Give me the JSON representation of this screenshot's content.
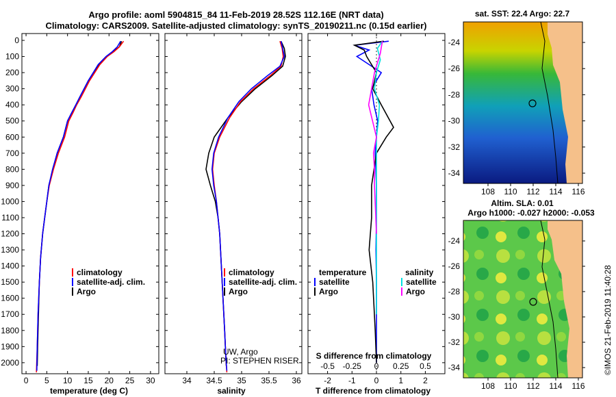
{
  "header": {
    "line1": "Argo profile: aoml 5904815_84 11-Feb-2019 28.52S 112.16E (NRT data)",
    "line2": "Climatology: CARS2009. Satellite-adjusted climatology: synTS_20190211.nc (0.15d earlier)"
  },
  "colors": {
    "argo": "#000000",
    "climatology": "#ff0000",
    "satellite": "#0000ff",
    "salinity_sat": "#00e0e0",
    "salinity_argo": "#ff00ff",
    "land": "#f5c08a"
  },
  "depth_axis": {
    "ticks": [
      0,
      100,
      200,
      300,
      400,
      500,
      600,
      700,
      800,
      900,
      1000,
      1100,
      1200,
      1300,
      1400,
      1500,
      1600,
      1700,
      1800,
      1900,
      2000
    ],
    "range": [
      0,
      2060
    ]
  },
  "legend": {
    "climatology": "climatology",
    "satellite": "satellite-adj. clim.",
    "argo": "Argo"
  },
  "diff_legend": {
    "temperature": "temperature",
    "salinity": "salinity",
    "t_satellite": "satellite",
    "t_argo": "Argo",
    "s_satellite": "satellite",
    "s_argo": "Argo"
  },
  "credits": {
    "line1": "UW, Argo",
    "line2": "PI: STEPHEN RISER"
  },
  "chart_data": [
    {
      "type": "line",
      "panel": "temperature",
      "xlabel": "temperature (deg C)",
      "xlim": [
        -1,
        32
      ],
      "xticks": [
        0,
        5,
        10,
        15,
        20,
        25,
        30
      ],
      "ylim": [
        0,
        2060
      ],
      "y_inverted": true,
      "series": [
        {
          "name": "Argo",
          "color": "#000000",
          "x": [
            23.0,
            22.5,
            21.0,
            19.5,
            17.5,
            15.0,
            13.0,
            12.0,
            11.0,
            10.0,
            9.0,
            7.5,
            6.5,
            5.5,
            5.0,
            4.5,
            4.0,
            3.5,
            3.2,
            3.0,
            2.8,
            2.7
          ],
          "y": [
            5,
            40,
            70,
            100,
            150,
            250,
            350,
            400,
            450,
            500,
            600,
            700,
            800,
            900,
            1000,
            1100,
            1200,
            1350,
            1500,
            1700,
            1900,
            2020
          ]
        },
        {
          "name": "climatology",
          "color": "#ff0000",
          "x": [
            23.5,
            22.5,
            21.2,
            19.6,
            17.8,
            15.3,
            13.3,
            12.2,
            11.3,
            10.3,
            9.3,
            7.8,
            6.6,
            5.6,
            5.0,
            4.5,
            4.0,
            3.5,
            3.2,
            2.9,
            2.7,
            2.5
          ],
          "y": [
            5,
            40,
            70,
            100,
            150,
            250,
            350,
            400,
            450,
            500,
            600,
            700,
            800,
            900,
            1000,
            1100,
            1200,
            1350,
            1500,
            1700,
            1900,
            2060
          ]
        },
        {
          "name": "satellite-adj. clim.",
          "color": "#0000ff",
          "x": [
            22.8,
            22.0,
            20.8,
            19.3,
            17.4,
            15.0,
            13.0,
            12.0,
            11.0,
            10.0,
            9.0,
            7.5,
            6.4,
            5.5,
            5.0,
            4.5,
            4.0,
            3.5,
            3.2,
            2.9,
            2.7,
            2.6
          ],
          "y": [
            5,
            40,
            70,
            100,
            150,
            250,
            350,
            400,
            450,
            500,
            600,
            700,
            800,
            900,
            1000,
            1100,
            1200,
            1350,
            1500,
            1700,
            1900,
            2050
          ]
        }
      ]
    },
    {
      "type": "line",
      "panel": "salinity",
      "xlabel": "salinity",
      "xlim": [
        33.6,
        36.1
      ],
      "xticks": [
        34,
        34.5,
        35,
        35.5,
        36
      ],
      "ylim": [
        0,
        2060
      ],
      "y_inverted": true,
      "series": [
        {
          "name": "Argo",
          "color": "#000000",
          "x": [
            35.72,
            35.78,
            35.8,
            35.75,
            35.55,
            35.25,
            35.0,
            34.75,
            34.5,
            34.4,
            34.35,
            34.43,
            34.52,
            34.57,
            34.6,
            34.63,
            34.66,
            34.69,
            34.71,
            34.72
          ],
          "y": [
            5,
            50,
            100,
            160,
            220,
            300,
            380,
            480,
            600,
            700,
            800,
            900,
            1000,
            1100,
            1200,
            1400,
            1600,
            1800,
            1950,
            2020
          ]
        },
        {
          "name": "climatology",
          "color": "#ff0000",
          "x": [
            35.7,
            35.74,
            35.76,
            35.72,
            35.52,
            35.22,
            34.98,
            34.78,
            34.6,
            34.5,
            34.47,
            34.5,
            34.54,
            34.57,
            34.6,
            34.63,
            34.66,
            34.69,
            34.71,
            34.73
          ],
          "y": [
            5,
            50,
            100,
            160,
            220,
            300,
            380,
            480,
            600,
            700,
            800,
            900,
            1000,
            1100,
            1200,
            1400,
            1600,
            1800,
            1950,
            2060
          ]
        },
        {
          "name": "satellite-adj. clim.",
          "color": "#0000ff",
          "x": [
            35.72,
            35.75,
            35.78,
            35.7,
            35.47,
            35.18,
            34.95,
            34.75,
            34.58,
            34.49,
            34.46,
            34.49,
            34.54,
            34.57,
            34.6,
            34.63,
            34.66,
            34.69,
            34.71,
            34.73
          ],
          "y": [
            5,
            50,
            100,
            160,
            220,
            300,
            380,
            480,
            600,
            700,
            800,
            900,
            1000,
            1100,
            1200,
            1400,
            1600,
            1800,
            1950,
            2050
          ]
        }
      ]
    },
    {
      "type": "line",
      "panel": "difference",
      "xlabel": "T difference from climatology",
      "xlabel_top": "S difference from climatology",
      "xlim": [
        -2.8,
        2.8
      ],
      "xticks": [
        -2,
        -1,
        0,
        1,
        2
      ],
      "s_ticks": [
        -0.5,
        -0.25,
        0,
        0.25,
        0.5
      ],
      "s_tick_labels": [
        "-0.5",
        "-0.25",
        "0",
        "0.25",
        "0.5"
      ],
      "ylim": [
        0,
        2060
      ],
      "y_inverted": true,
      "series": [
        {
          "name": "T satellite",
          "color": "#0000ff",
          "x": [
            0.5,
            -0.9,
            -0.3,
            -0.8,
            0.2,
            -0.2,
            -0.1,
            0.05,
            0.0,
            -0.05,
            0.0,
            0.0,
            -0.02,
            0.0,
            0.0,
            0.0
          ],
          "y": [
            5,
            30,
            60,
            100,
            200,
            300,
            400,
            500,
            600,
            700,
            900,
            1100,
            1300,
            1500,
            1800,
            2000
          ]
        },
        {
          "name": "T Argo",
          "color": "#000000",
          "x": [
            0.3,
            -0.9,
            -0.5,
            -0.4,
            0.0,
            -0.15,
            0.2,
            0.7,
            0.4,
            0.0,
            -0.2,
            -0.2,
            -0.3,
            -0.15,
            -0.05,
            0.0
          ],
          "y": [
            5,
            30,
            60,
            100,
            200,
            300,
            400,
            540,
            600,
            700,
            900,
            1100,
            1300,
            1500,
            1800,
            2000
          ]
        },
        {
          "name": "S satellite",
          "color": "#00e0e0",
          "x": [
            0.06,
            0.01,
            0.04,
            0.0,
            -0.02,
            0.03,
            0.02,
            0.0,
            0.0,
            0.0,
            0.0,
            0.0,
            0.0,
            0.0
          ],
          "y": [
            5,
            50,
            120,
            200,
            300,
            400,
            500,
            600,
            700,
            900,
            1100,
            1300,
            1500,
            1700
          ]
        },
        {
          "name": "S Argo",
          "color": "#ff00ff",
          "x": [
            0.06,
            0.04,
            -0.02,
            -0.05,
            -0.08,
            -0.04,
            0.0,
            -0.03,
            -0.02,
            -0.02,
            -0.01,
            0.0
          ],
          "y": [
            5,
            80,
            200,
            300,
            400,
            500,
            600,
            700,
            800,
            900,
            1050,
            1200
          ]
        }
      ]
    }
  ],
  "sst_map": {
    "title": "sat. SST: 22.4 Argo: 22.7",
    "lat_labels": [
      "-24",
      "-26",
      "-28",
      "-30",
      "-32",
      "-34"
    ],
    "lon_labels": [
      "108",
      "110",
      "112",
      "114",
      "116"
    ]
  },
  "sla_map": {
    "title1": "Altim. SLA: 0.01",
    "title2": "Argo h1000: -0.027 h2000: -0.053",
    "lat_labels": [
      "-24",
      "-26",
      "-28",
      "-30",
      "-32",
      "-34"
    ],
    "lon_labels": [
      "108",
      "110",
      "112",
      "114",
      "116"
    ]
  },
  "watermark": "©IMOS 21-Feb-2019 11:40:28"
}
